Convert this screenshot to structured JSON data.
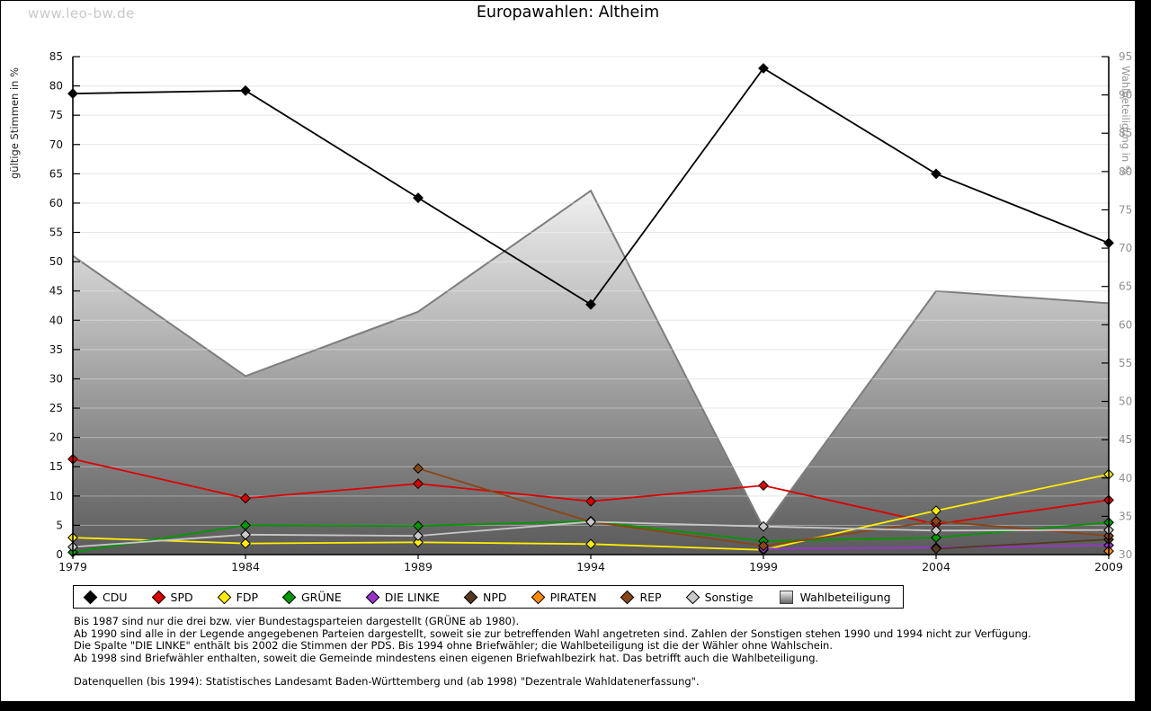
{
  "watermark": "www.leo-bw.de",
  "title": "Europawahlen: Altheim",
  "chart_data": {
    "type": "line",
    "title": "Europawahlen: Altheim",
    "x": [
      1979,
      1984,
      1989,
      1994,
      1999,
      2004,
      2009
    ],
    "ylabel_left": "gültige Stimmen in %",
    "ylabel_right": "Wahlbeteiligung in %",
    "ylim_left": [
      0,
      85
    ],
    "ylim_right": [
      30,
      95
    ],
    "yticks_left": [
      0,
      5,
      10,
      15,
      20,
      25,
      30,
      35,
      40,
      45,
      50,
      55,
      60,
      65,
      70,
      75,
      80,
      85
    ],
    "yticks_right": [
      30,
      35,
      40,
      45,
      50,
      55,
      60,
      65,
      70,
      75,
      80,
      85,
      90,
      95
    ],
    "grid": true,
    "legend_position": "bottom",
    "area_gradient": [
      "#f2f2f2",
      "#5a5a5a"
    ],
    "area_edge_color": "#7d7d7d",
    "series": [
      {
        "name": "CDU",
        "color": "#000000",
        "axis": "left",
        "style": "line",
        "values": [
          78.7,
          79.2,
          60.9,
          42.7,
          83.0,
          65.0,
          53.2
        ]
      },
      {
        "name": "SPD",
        "color": "#dd0000",
        "axis": "left",
        "style": "line",
        "values": [
          16.3,
          9.6,
          12.1,
          9.1,
          11.8,
          5.2,
          9.3
        ]
      },
      {
        "name": "FDP",
        "color": "#ffee00",
        "axis": "left",
        "style": "line",
        "values": [
          2.9,
          1.9,
          2.1,
          1.8,
          0.8,
          7.5,
          13.7
        ]
      },
      {
        "name": "GRÜNE",
        "color": "#009900",
        "axis": "left",
        "style": "line",
        "values": [
          0.4,
          5.0,
          4.9,
          5.7,
          2.3,
          2.9,
          5.5
        ]
      },
      {
        "name": "DIE LINKE",
        "color": "#9933cc",
        "axis": "left",
        "style": "line",
        "values": [
          null,
          null,
          null,
          null,
          1.0,
          1.2,
          1.6
        ]
      },
      {
        "name": "NPD",
        "color": "#54391e",
        "axis": "left",
        "style": "line",
        "values": [
          null,
          null,
          null,
          null,
          null,
          1.0,
          2.6
        ]
      },
      {
        "name": "PIRATEN",
        "color": "#ff8c00",
        "axis": "left",
        "style": "line",
        "values": [
          null,
          null,
          null,
          null,
          null,
          null,
          0.6
        ]
      },
      {
        "name": "REP",
        "color": "#8b4513",
        "axis": "left",
        "style": "line",
        "values": [
          null,
          null,
          14.7,
          5.6,
          1.5,
          5.7,
          3.2
        ]
      },
      {
        "name": "Sonstige",
        "color": "#c8c8c8",
        "axis": "left",
        "style": "line",
        "values": [
          1.3,
          3.4,
          3.2,
          5.6,
          4.8,
          4.1,
          4.2
        ]
      },
      {
        "name": "Wahlbeteiligung",
        "color": "gradient-gray",
        "axis": "right",
        "style": "area",
        "values": [
          69.0,
          53.3,
          61.7,
          77.5,
          33.5,
          64.4,
          62.8
        ]
      }
    ]
  },
  "footnotes": [
    "Bis 1987 sind nur die drei bzw. vier Bundestagsparteien dargestellt (GRÜNE ab 1980).",
    "Ab 1990 sind alle in der Legende angegebenen Parteien dargestellt, soweit sie zur betreffenden Wahl angetreten sind. Zahlen der Sonstigen stehen 1990 und 1994 nicht zur Verfügung.",
    "Die Spalte \"DIE LINKE\" enthält bis 2002 die Stimmen der PDS. Bis 1994 ohne Briefwähler; die Wahlbeteiligung ist die der Wähler ohne Wahlschein.",
    "Ab 1998 sind Briefwähler enthalten, soweit die Gemeinde mindestens einen eigenen Briefwahlbezirk hat. Das betrifft auch die Wahlbeteiligung."
  ],
  "source": "Datenquellen (bis 1994): Statistisches Landesamt Baden-Württemberg und (ab 1998) \"Dezentrale Wahldatenerfassung\"."
}
